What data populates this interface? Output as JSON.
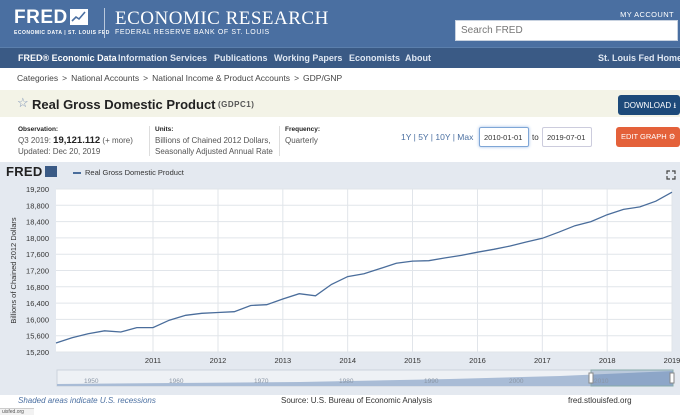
{
  "header": {
    "logo": "FRED",
    "logo_sub": "ECONOMIC DATA | ST. LOUIS FED",
    "org_title": "ECONOMIC RESEARCH",
    "org_sub": "FEDERAL RESERVE BANK OF ST. LOUIS",
    "my_account": "MY ACCOUNT",
    "search_placeholder": "Search FRED"
  },
  "nav": {
    "items": [
      "FRED® Economic Data",
      "Information Services",
      "Publications",
      "Working Papers",
      "Economists",
      "About"
    ],
    "right": "St. Louis Fed Home"
  },
  "breadcrumb": [
    "Categories",
    "National Accounts",
    "National Income & Product Accounts",
    "GDP/GNP"
  ],
  "series": {
    "title": "Real Gross Domestic Product",
    "id": "(GDPC1)",
    "download": "DOWNLOAD",
    "observation_label": "Observation:",
    "observation_period": "Q3 2019:",
    "observation_value": "19,121.112",
    "observation_more": "(+ more)",
    "updated": "Updated: Dec 20, 2019",
    "units_label": "Units:",
    "units_line1": "Billions of Chained 2012 Dollars,",
    "units_line2": "Seasonally Adjusted Annual Rate",
    "frequency_label": "Frequency:",
    "frequency": "Quarterly",
    "range_1y": "1Y",
    "range_5y": "5Y",
    "range_10y": "10Y",
    "range_max": "Max",
    "start_date": "2010-01-01",
    "to": "to",
    "end_date": "2019-07-01",
    "edit_graph": "EDIT GRAPH"
  },
  "chart_header": {
    "logo": "FRED",
    "legend": "Real Gross Domestic Product"
  },
  "colors": {
    "header": "#4a6fa1",
    "nav": "#3a5a85",
    "line": "#4a6d9b",
    "plot_bg": "#ffffff",
    "chart_bg": "#e4e9f0",
    "edit_button": "#e4613a",
    "download_button": "#1d4a7a"
  },
  "chart_data": {
    "type": "line",
    "ylabel": "Billions of Chained 2012 Dollars",
    "ylim": [
      15200,
      19200
    ],
    "yticks": [
      15200,
      15600,
      16000,
      16400,
      16800,
      17200,
      17600,
      18000,
      18400,
      18800,
      19200
    ],
    "ytick_labels": [
      "15,200",
      "15,600",
      "16,000",
      "16,400",
      "16,800",
      "17,200",
      "17,600",
      "18,000",
      "18,400",
      "18,800",
      "19,200"
    ],
    "xticks": [
      "2011",
      "2012",
      "2013",
      "2014",
      "2015",
      "2016",
      "2017",
      "2018",
      "2019"
    ],
    "grid": true,
    "series": [
      {
        "name": "Real Gross Domestic Product",
        "x": [
          "2010-01-01",
          "2010-04-01",
          "2010-07-01",
          "2010-10-01",
          "2011-01-01",
          "2011-04-01",
          "2011-07-01",
          "2011-10-01",
          "2012-01-01",
          "2012-04-01",
          "2012-07-01",
          "2012-10-01",
          "2013-01-01",
          "2013-04-01",
          "2013-07-01",
          "2013-10-01",
          "2014-01-01",
          "2014-04-01",
          "2014-07-01",
          "2014-10-01",
          "2015-01-01",
          "2015-04-01",
          "2015-07-01",
          "2015-10-01",
          "2016-01-01",
          "2016-04-01",
          "2016-07-01",
          "2016-10-01",
          "2017-01-01",
          "2017-04-01",
          "2017-07-01",
          "2017-10-01",
          "2018-01-01",
          "2018-04-01",
          "2018-07-01",
          "2018-10-01",
          "2019-01-01",
          "2019-04-01",
          "2019-07-01"
        ],
        "values": [
          15420,
          15550,
          15650,
          15720,
          15690,
          15800,
          15800,
          15980,
          16100,
          16150,
          16170,
          16190,
          16340,
          16360,
          16500,
          16630,
          16580,
          16860,
          17050,
          17120,
          17250,
          17380,
          17430,
          17440,
          17510,
          17570,
          17650,
          17720,
          17800,
          17900,
          17990,
          18140,
          18300,
          18400,
          18570,
          18700,
          18760,
          18900,
          19121
        ]
      }
    ],
    "navigator_labels": [
      "1950",
      "1960",
      "1970",
      "1980",
      "1990",
      "2000",
      "2010"
    ]
  },
  "footer": {
    "recession_note": "Shaded areas indicate U.S. recessions",
    "source": "Source: U.S. Bureau of Economic Analysis",
    "site": "fred.stlouisfed.org"
  },
  "status_text": "uisfed.org"
}
